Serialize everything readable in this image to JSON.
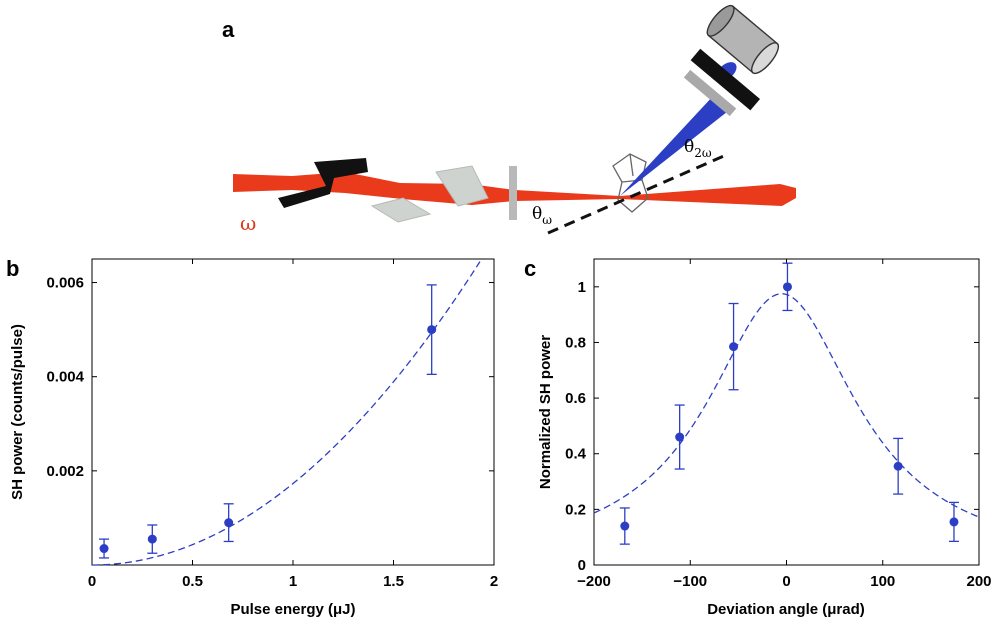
{
  "panels": {
    "a": "a",
    "b": "b",
    "c": "c"
  },
  "schematic": {
    "omega_label": "ω",
    "theta_omega": {
      "symbol": "θ",
      "sub": "ω"
    },
    "theta_2omega": {
      "symbol": "θ",
      "sub": "2ω"
    },
    "colors": {
      "fundamental_beam": "#ea3a1c",
      "sh_beam": "#2c3fc4",
      "filter": "#1a1a1a",
      "prism": "#c8ccc8",
      "detector": "#b9b9b9"
    }
  },
  "chart_data": [
    {
      "type": "scatter",
      "panel": "b",
      "xlabel": "Pulse energy (μJ)",
      "ylabel": "SH power (counts/pulse)",
      "xlim": [
        0,
        2
      ],
      "ylim": [
        0,
        0.0065
      ],
      "xticks": [
        0,
        0.5,
        1,
        1.5,
        2
      ],
      "xtick_labels": [
        "0",
        "0.5",
        "1",
        "1.5",
        "2"
      ],
      "yticks": [
        0.002,
        0.004,
        0.006
      ],
      "ytick_labels": [
        "0.002",
        "0.004",
        "0.006"
      ],
      "grid": false,
      "color": "#2c3fc4",
      "points": [
        {
          "x": 0.06,
          "y": 0.00035,
          "err": 0.0002
        },
        {
          "x": 0.3,
          "y": 0.00055,
          "err": 0.0003
        },
        {
          "x": 0.68,
          "y": 0.0009,
          "err": 0.0004
        },
        {
          "x": 1.69,
          "y": 0.005,
          "err": 0.00095
        }
      ],
      "fit": {
        "type": "quadratic",
        "coef": 0.00173
      }
    },
    {
      "type": "scatter",
      "panel": "c",
      "xlabel": "Deviation angle (μrad)",
      "ylabel": "Normalized SH power",
      "xlim": [
        -200,
        200
      ],
      "ylim": [
        0,
        1.1
      ],
      "xticks": [
        -200,
        -100,
        0,
        100,
        200
      ],
      "xtick_labels": [
        "−200",
        "−100",
        "0",
        "100",
        "200"
      ],
      "yticks": [
        0,
        0.2,
        0.4,
        0.6,
        0.8,
        1
      ],
      "ytick_labels": [
        "0",
        "0.2",
        "0.4",
        "0.6",
        "0.8",
        "1"
      ],
      "grid": false,
      "color": "#2c3fc4",
      "points": [
        {
          "x": -168,
          "y": 0.14,
          "err": 0.065
        },
        {
          "x": -111,
          "y": 0.46,
          "err": 0.115
        },
        {
          "x": -55,
          "y": 0.785,
          "err": 0.155
        },
        {
          "x": 1,
          "y": 1.0,
          "err": 0.085
        },
        {
          "x": 116,
          "y": 0.355,
          "err": 0.1
        },
        {
          "x": 174,
          "y": 0.155,
          "err": 0.07
        }
      ],
      "fit": {
        "type": "lorentzian",
        "amplitude": 0.975,
        "center": -5,
        "half_width": 95
      }
    }
  ]
}
